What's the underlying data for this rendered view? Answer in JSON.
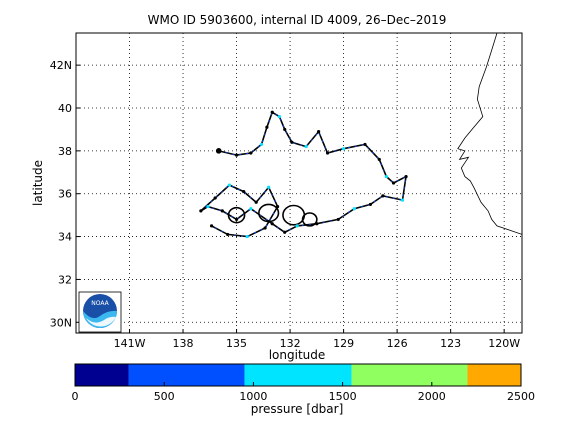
{
  "title": "WMO ID 5903600, internal ID 4009, 26–Dec–2019",
  "map": {
    "xlabel": "longitude",
    "ylabel": "latitude",
    "lon_range": [
      -144,
      -119
    ],
    "lat_range": [
      29.5,
      43.5
    ],
    "x_ticks": [
      {
        "value": -141,
        "label": "141W"
      },
      {
        "value": -138,
        "label": "138"
      },
      {
        "value": -135,
        "label": "135"
      },
      {
        "value": -132,
        "label": "132"
      },
      {
        "value": -129,
        "label": "129"
      },
      {
        "value": -126,
        "label": "126"
      },
      {
        "value": -123,
        "label": "123"
      },
      {
        "value": -120,
        "label": "120W"
      }
    ],
    "y_ticks": [
      {
        "value": 30,
        "label": "30N"
      },
      {
        "value": 32,
        "label": "32"
      },
      {
        "value": 34,
        "label": "34"
      },
      {
        "value": 36,
        "label": "36"
      },
      {
        "value": 38,
        "label": "38"
      },
      {
        "value": 40,
        "label": "40"
      },
      {
        "value": 42,
        "label": "42N"
      }
    ],
    "grid": true,
    "coastline": [
      [
        -120.4,
        43.5
      ],
      [
        -120.7,
        42.7
      ],
      [
        -121.0,
        41.9
      ],
      [
        -121.4,
        41.0
      ],
      [
        -121.5,
        40.4
      ],
      [
        -121.2,
        39.6
      ],
      [
        -121.7,
        39.1
      ],
      [
        -122.2,
        38.6
      ],
      [
        -122.6,
        38.1
      ],
      [
        -122.2,
        38.0
      ],
      [
        -122.5,
        37.6
      ],
      [
        -122.0,
        37.7
      ],
      [
        -122.4,
        37.2
      ],
      [
        -122.2,
        36.8
      ],
      [
        -121.9,
        36.6
      ],
      [
        -121.7,
        36.3
      ],
      [
        -121.3,
        35.6
      ],
      [
        -120.9,
        35.2
      ],
      [
        -120.7,
        34.8
      ],
      [
        -120.4,
        34.5
      ],
      [
        -119.7,
        34.3
      ],
      [
        -119.0,
        34.1
      ]
    ],
    "legend": {
      "logo_text": "NOAA",
      "position": "bottom-left"
    }
  },
  "chart_data": {
    "type": "scatter",
    "title": "WMO ID 5903600, internal ID 4009, 26–Dec–2019",
    "xlabel": "longitude",
    "ylabel": "latitude",
    "track": [
      [
        -136.0,
        38.0
      ],
      [
        -135.0,
        37.8
      ],
      [
        -134.2,
        37.9
      ],
      [
        -133.6,
        38.3
      ],
      [
        -133.3,
        39.1
      ],
      [
        -133.0,
        39.8
      ],
      [
        -132.6,
        39.6
      ],
      [
        -132.3,
        39.0
      ],
      [
        -131.9,
        38.4
      ],
      [
        -131.1,
        38.2
      ],
      [
        -130.4,
        38.9
      ],
      [
        -129.9,
        37.9
      ],
      [
        -129.0,
        38.1
      ],
      [
        -127.8,
        38.3
      ],
      [
        -127.0,
        37.6
      ],
      [
        -126.6,
        36.8
      ],
      [
        -126.2,
        36.5
      ],
      [
        -125.5,
        36.8
      ],
      [
        -125.7,
        35.7
      ],
      [
        -126.8,
        35.9
      ],
      [
        -127.5,
        35.5
      ],
      [
        -128.4,
        35.3
      ],
      [
        -129.3,
        34.8
      ],
      [
        -130.5,
        34.6
      ],
      [
        -131.6,
        34.5
      ],
      [
        -132.3,
        34.2
      ],
      [
        -133.0,
        34.6
      ],
      [
        -134.2,
        35.3
      ],
      [
        -135.0,
        34.8
      ],
      [
        -135.8,
        35.2
      ],
      [
        -136.6,
        35.4
      ],
      [
        -137.0,
        35.2
      ],
      [
        -136.2,
        35.8
      ],
      [
        -135.4,
        36.4
      ],
      [
        -134.6,
        36.1
      ],
      [
        -133.9,
        35.6
      ],
      [
        -133.2,
        36.3
      ],
      [
        -132.7,
        35.4
      ],
      [
        -133.4,
        34.4
      ],
      [
        -134.4,
        34.0
      ],
      [
        -135.5,
        34.1
      ],
      [
        -136.4,
        34.5
      ]
    ],
    "loops": [
      [
        -131.8,
        35.0,
        0.6,
        0.45
      ],
      [
        -133.2,
        35.1,
        0.55,
        0.4
      ],
      [
        -135.0,
        35.0,
        0.45,
        0.35
      ],
      [
        -130.9,
        34.8,
        0.4,
        0.3
      ]
    ],
    "colorbar": {
      "label": "pressure [dbar]",
      "range": [
        0,
        2500
      ],
      "ticks": [
        0,
        500,
        1000,
        1500,
        2000,
        2500
      ],
      "bins": [
        {
          "from": 0,
          "to": 300,
          "color": "#000090"
        },
        {
          "from": 300,
          "to": 950,
          "color": "#0050ff"
        },
        {
          "from": 950,
          "to": 1550,
          "color": "#00e4ff"
        },
        {
          "from": 1550,
          "to": 2200,
          "color": "#90ff60"
        },
        {
          "from": 2200,
          "to": 2500,
          "color": "#ffa800"
        }
      ]
    }
  }
}
